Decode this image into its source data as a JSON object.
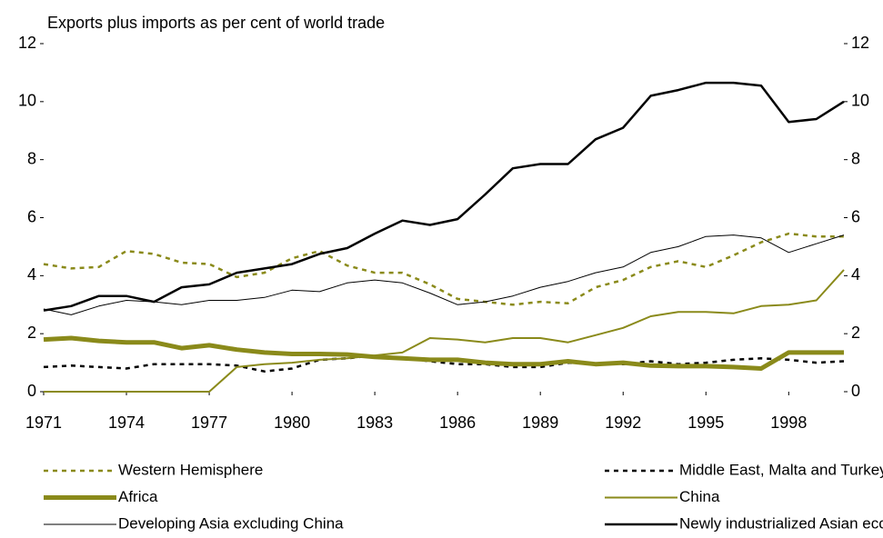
{
  "chart_data": {
    "type": "line",
    "subtitle": "Exports plus imports as per cent of world trade",
    "x": [
      1971,
      1972,
      1973,
      1974,
      1975,
      1976,
      1977,
      1978,
      1979,
      1980,
      1981,
      1982,
      1983,
      1984,
      1985,
      1986,
      1987,
      1988,
      1989,
      1990,
      1991,
      1992,
      1993,
      1994,
      1995,
      1996,
      1997,
      1998,
      1999,
      2000
    ],
    "xlim": [
      1971,
      2000
    ],
    "xticks": [
      1971,
      1974,
      1977,
      1980,
      1983,
      1986,
      1989,
      1992,
      1995,
      1998
    ],
    "ylim": [
      0,
      12
    ],
    "yticks": [
      0,
      2,
      4,
      6,
      8,
      10,
      12
    ],
    "y2lim": [
      0,
      12
    ],
    "y2ticks": [
      0,
      2,
      4,
      6,
      8,
      10,
      12
    ],
    "series": [
      {
        "name": "Western Hemisphere",
        "color": "#8a8a1a",
        "line_style": "dashed",
        "width": 2.5,
        "values": [
          4.4,
          4.25,
          4.3,
          4.85,
          4.75,
          4.45,
          4.4,
          3.95,
          4.1,
          4.6,
          4.85,
          4.35,
          4.1,
          4.1,
          3.7,
          3.2,
          3.1,
          3.0,
          3.1,
          3.05,
          3.6,
          3.85,
          4.3,
          4.5,
          4.3,
          4.7,
          5.15,
          5.45,
          5.35,
          5.35
        ]
      },
      {
        "name": "Middle East, Malta and Turkey",
        "color": "#000000",
        "line_style": "dashed",
        "width": 2.5,
        "values": [
          0.85,
          0.9,
          0.85,
          0.8,
          0.95,
          0.95,
          0.95,
          0.9,
          0.7,
          0.8,
          1.1,
          1.15,
          1.25,
          1.15,
          1.05,
          0.95,
          0.95,
          0.85,
          0.85,
          1.0,
          0.95,
          0.95,
          1.05,
          0.95,
          1.0,
          1.1,
          1.15,
          1.1,
          1.0,
          1.05
        ]
      },
      {
        "name": "Africa",
        "color": "#8a8a1a",
        "line_style": "solid",
        "width": 5,
        "values": [
          1.8,
          1.85,
          1.75,
          1.7,
          1.7,
          1.5,
          1.6,
          1.45,
          1.35,
          1.3,
          1.3,
          1.28,
          1.2,
          1.15,
          1.1,
          1.1,
          1.0,
          0.95,
          0.95,
          1.05,
          0.95,
          1.0,
          0.9,
          0.88,
          0.88,
          0.85,
          0.8,
          1.35,
          1.35,
          1.35
        ]
      },
      {
        "name": "China",
        "color": "#8a8a1a",
        "line_style": "solid",
        "width": 2,
        "values": [
          0,
          0,
          0,
          0,
          0,
          0,
          0,
          0.85,
          0.95,
          1.0,
          1.1,
          1.15,
          1.25,
          1.35,
          1.85,
          1.8,
          1.7,
          1.85,
          1.85,
          1.7,
          1.95,
          2.2,
          2.6,
          2.75,
          2.75,
          2.7,
          2.95,
          3.0,
          3.15,
          4.2
        ]
      },
      {
        "name": "Developing Asia excluding China",
        "color": "#000000",
        "line_style": "solid",
        "width": 1,
        "values": [
          2.85,
          2.65,
          2.95,
          3.15,
          3.1,
          3.0,
          3.15,
          3.15,
          3.25,
          3.5,
          3.45,
          3.75,
          3.85,
          3.75,
          3.4,
          3.0,
          3.1,
          3.3,
          3.6,
          3.8,
          4.1,
          4.3,
          4.8,
          5.0,
          5.35,
          5.4,
          5.3,
          4.8,
          5.1,
          5.4
        ]
      },
      {
        "name": "Newly industrialized Asian economies",
        "color": "#000000",
        "line_style": "solid",
        "width": 2.5,
        "values": [
          2.8,
          2.95,
          3.3,
          3.3,
          3.1,
          3.6,
          3.7,
          4.1,
          4.25,
          4.4,
          4.75,
          4.95,
          5.45,
          5.9,
          5.75,
          5.95,
          6.8,
          7.7,
          7.85,
          7.85,
          8.7,
          9.1,
          10.2,
          10.4,
          10.65,
          10.65,
          10.55,
          9.3,
          9.4,
          10.0
        ]
      }
    ]
  }
}
